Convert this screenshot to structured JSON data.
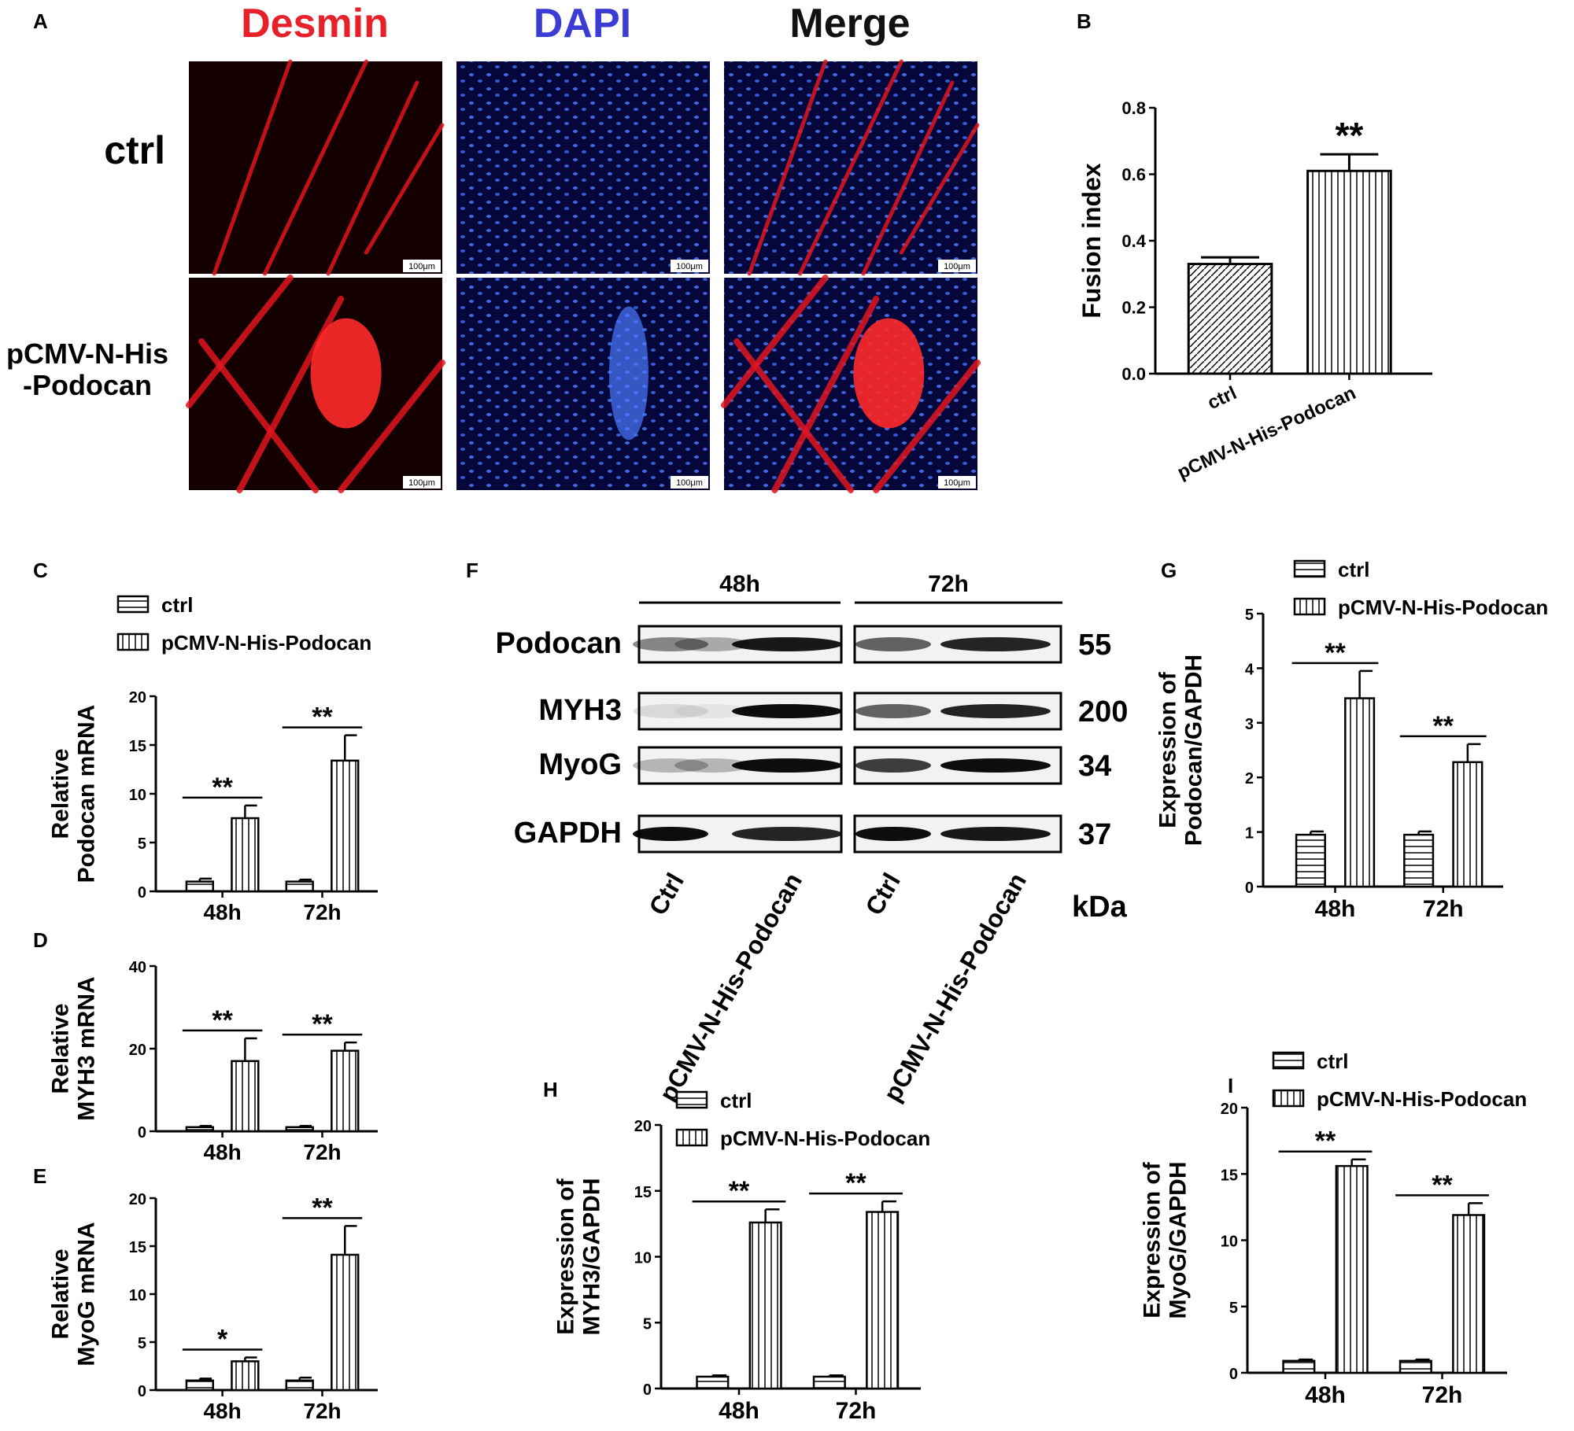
{
  "panel_letters": [
    "A",
    "B",
    "C",
    "D",
    "E",
    "F",
    "G",
    "H",
    "I"
  ],
  "panel_a": {
    "columns": [
      "Desmin",
      "DAPI",
      "Merge"
    ],
    "rows": [
      "ctrl",
      "pCMV-N-His\n-Podocan"
    ],
    "scale_bar": "100μm",
    "colors": {
      "desmin": "#e8202a",
      "dapi": "#3b3bd6",
      "merge": "#111111"
    }
  },
  "panel_f": {
    "times": [
      "48h",
      "72h"
    ],
    "proteins": [
      "Podocan",
      "MYH3",
      "MyoG",
      "GAPDH"
    ],
    "kda": [
      "55",
      "200",
      "34",
      "37"
    ],
    "kda_label": "kDa",
    "lanes": [
      "Ctrl",
      "pCMV-N-His-Podocan",
      "Ctrl",
      "pCMV-N-His-Podocan"
    ],
    "band_intensity": [
      [
        0.45,
        0.3,
        0.9,
        0.6,
        0.85
      ],
      [
        0.1,
        0.05,
        0.95,
        0.6,
        0.85
      ],
      [
        0.25,
        0.25,
        0.95,
        0.75,
        0.95
      ],
      [
        0.95,
        0.02,
        0.85,
        0.95,
        0.9
      ]
    ]
  },
  "chart_data": [
    {
      "id": "B",
      "type": "bar",
      "categories": [
        "ctrl",
        "pCMV-N-His-Podocan"
      ],
      "values": [
        0.33,
        0.61
      ],
      "errors": [
        0.02,
        0.05
      ],
      "ylabel": "Fusion index",
      "ylim": [
        0,
        0.8
      ],
      "yticks": [
        "0.0",
        "0.2",
        "0.4",
        "0.6",
        "0.8"
      ],
      "sig": [
        {
          "label": "**",
          "target": 1
        }
      ]
    },
    {
      "id": "C",
      "type": "bar",
      "categories": [
        "48h",
        "72h"
      ],
      "series": [
        {
          "name": "ctrl",
          "values": [
            1.0,
            1.0
          ],
          "errors": [
            0.3,
            0.2
          ]
        },
        {
          "name": "pCMV-N-His-Podocan",
          "values": [
            7.5,
            13.4
          ],
          "errors": [
            1.3,
            2.6
          ]
        }
      ],
      "ylabel": "Relative\nPodocan mRNA",
      "ylim": [
        0,
        20
      ],
      "yticks": [
        "0",
        "5",
        "10",
        "15",
        "20"
      ],
      "sig": [
        "**",
        "**"
      ]
    },
    {
      "id": "D",
      "type": "bar",
      "categories": [
        "48h",
        "72h"
      ],
      "series": [
        {
          "name": "ctrl",
          "values": [
            1.0,
            1.0
          ],
          "errors": [
            0.3,
            0.3
          ]
        },
        {
          "name": "pCMV-N-His-Podocan",
          "values": [
            17.0,
            19.5
          ],
          "errors": [
            5.5,
            2.0
          ]
        }
      ],
      "ylabel": "Relative\nMYH3  mRNA",
      "ylim": [
        0,
        40
      ],
      "yticks": [
        "0",
        "20",
        "40"
      ],
      "sig": [
        "**",
        "**"
      ]
    },
    {
      "id": "E",
      "type": "bar",
      "categories": [
        "48h",
        "72h"
      ],
      "series": [
        {
          "name": "ctrl",
          "values": [
            1.0,
            1.0
          ],
          "errors": [
            0.2,
            0.3
          ]
        },
        {
          "name": "pCMV-N-His-Podocan",
          "values": [
            3.0,
            14.1
          ],
          "errors": [
            0.4,
            3.0
          ]
        }
      ],
      "ylabel": "Relative\nMyoG mRNA",
      "ylim": [
        0,
        20
      ],
      "yticks": [
        "0",
        "5",
        "10",
        "15",
        "20"
      ],
      "sig": [
        "*",
        "**"
      ]
    },
    {
      "id": "G",
      "type": "bar",
      "categories": [
        "48h",
        "72h"
      ],
      "series": [
        {
          "name": "ctrl",
          "values": [
            0.95,
            0.95
          ],
          "errors": [
            0.06,
            0.06
          ]
        },
        {
          "name": "pCMV-N-His-Podocan",
          "values": [
            3.45,
            2.28
          ],
          "errors": [
            0.5,
            0.33
          ]
        }
      ],
      "ylabel": "Expression of\nPodocan/GAPDH",
      "ylim": [
        0,
        5
      ],
      "yticks": [
        "0",
        "1",
        "2",
        "3",
        "4",
        "5"
      ],
      "sig": [
        "**",
        "**"
      ]
    },
    {
      "id": "H",
      "type": "bar",
      "categories": [
        "48h",
        "72h"
      ],
      "series": [
        {
          "name": "ctrl",
          "values": [
            0.9,
            0.9
          ],
          "errors": [
            0.1,
            0.1
          ]
        },
        {
          "name": "pCMV-N-His-Podocan",
          "values": [
            12.6,
            13.4
          ],
          "errors": [
            1.0,
            0.8
          ]
        }
      ],
      "ylabel": "Expression of\nMYH3/GAPDH",
      "ylim": [
        0,
        20
      ],
      "yticks": [
        "0",
        "5",
        "10",
        "15",
        "20"
      ],
      "sig": [
        "**",
        "**"
      ]
    },
    {
      "id": "I",
      "type": "bar",
      "categories": [
        "48h",
        "72h"
      ],
      "series": [
        {
          "name": "ctrl",
          "values": [
            0.9,
            0.9
          ],
          "errors": [
            0.1,
            0.1
          ]
        },
        {
          "name": "pCMV-N-His-Podocan",
          "values": [
            15.6,
            11.9
          ],
          "errors": [
            0.5,
            0.9
          ]
        }
      ],
      "ylabel": "Expression of\nMyoG/GAPDH",
      "ylim": [
        0,
        20
      ],
      "yticks": [
        "0",
        "5",
        "10",
        "15",
        "20"
      ],
      "sig": [
        "**",
        "**"
      ]
    }
  ]
}
